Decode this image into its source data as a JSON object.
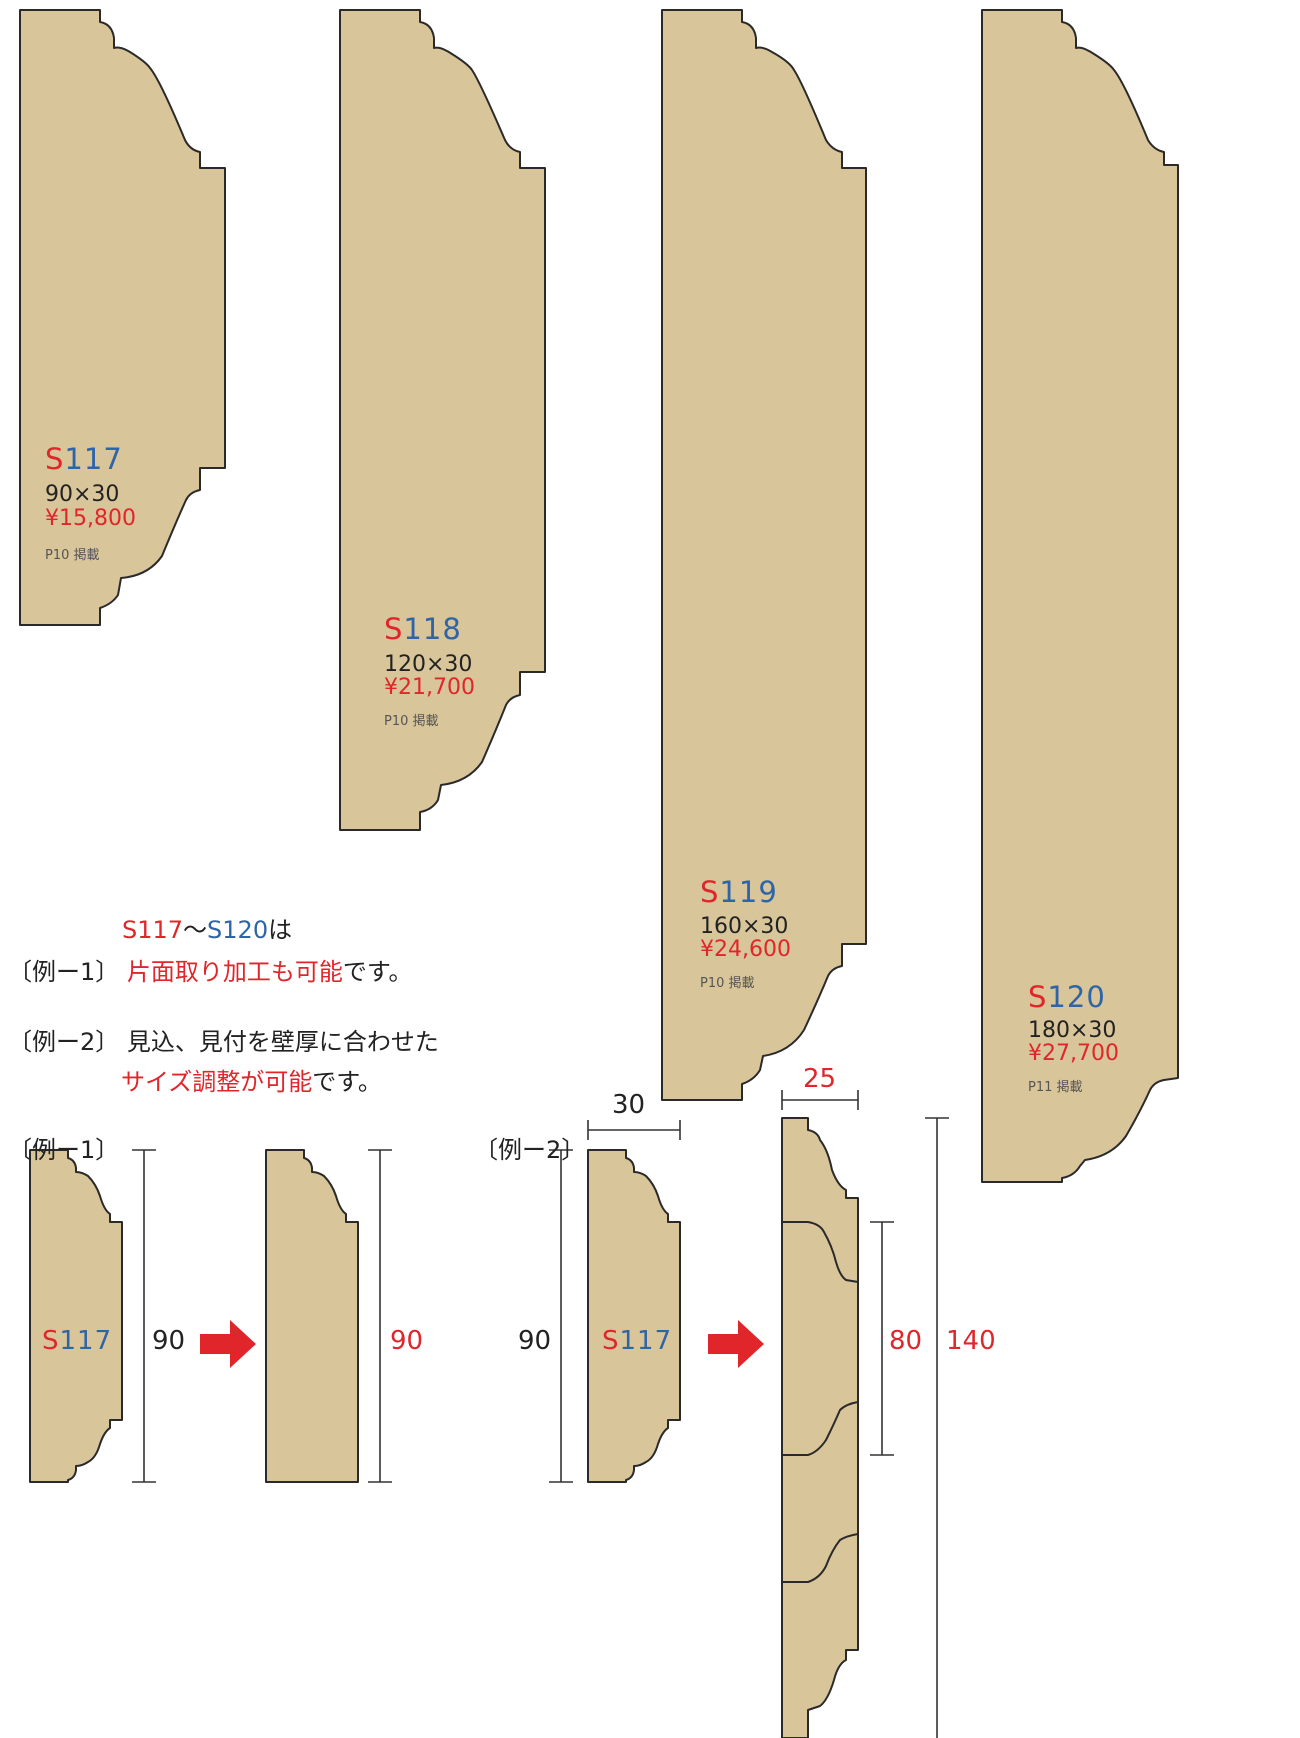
{
  "colors": {
    "wood": "#d9c59a",
    "outline": "#2a2a2a",
    "accent_red": "#e0262b",
    "accent_blue": "#2e64a8",
    "dimension_line": "#333333"
  },
  "products": [
    {
      "prefix": "S",
      "number": "117",
      "size": "90×30",
      "price": "¥15,800",
      "page": "P10 掲載"
    },
    {
      "prefix": "S",
      "number": "118",
      "size": "120×30",
      "price": "¥21,700",
      "page": "P10 掲載"
    },
    {
      "prefix": "S",
      "number": "119",
      "size": "160×30",
      "price": "¥24,600",
      "page": "P10 掲載"
    },
    {
      "prefix": "S",
      "number": "120",
      "size": "180×30",
      "price": "¥27,700",
      "page": "P11 掲載"
    }
  ],
  "notes": {
    "range_start": "S117",
    "range_sep": "〜",
    "range_end": "S120",
    "range_suffix": "は",
    "ex1_label": "〔例ー1〕",
    "ex1_red": "片面取り加工も可能",
    "ex1_tail": "です。",
    "ex2_label": "〔例ー2〕",
    "ex2_line1": "見込、見付を壁厚に合わせた",
    "ex2_red": "サイズ調整が可能",
    "ex2_tail": "です。"
  },
  "example1": {
    "heading": "〔例ー1〕",
    "part_prefix": "S",
    "part_number": "117",
    "height_before": "90",
    "height_after": "90"
  },
  "example2": {
    "heading": "〔例ー2〕",
    "part_prefix": "S",
    "part_number": "117",
    "width_before": "30",
    "height_before": "90",
    "width_after": "25",
    "height_inner": "80",
    "height_total": "140"
  }
}
